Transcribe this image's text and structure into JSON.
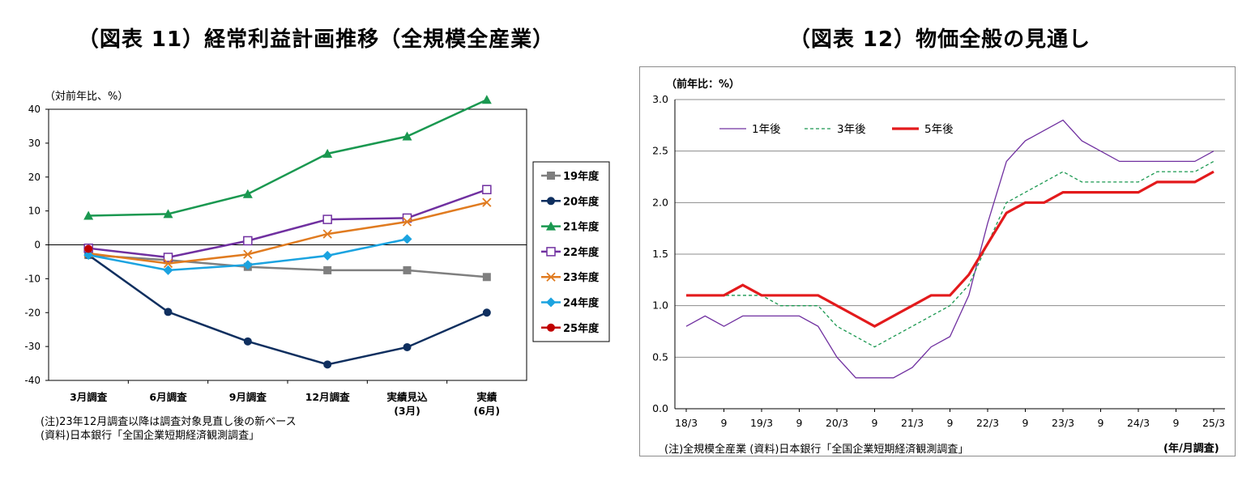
{
  "left_title": "（図表 11）経常利益計画推移（全規模全産業）",
  "right_title": "（図表 12）物価全般の見通し",
  "left_notes": {
    "note1": "(注)23年12月調査以降は調査対象見直し後の新ベース",
    "note2": "(資料)日本銀行「全国企業短期経済観測調査」"
  },
  "right_notes": {
    "note": "(注)全規模全産業 (資料)日本銀行「全国企業短期経済観測調査」",
    "xunit": "(年/月調査)"
  },
  "chart_data": [
    {
      "type": "line",
      "title": "（図表 11）経常利益計画推移（全規模全産業）",
      "ylabel": "（対前年比、%）",
      "ylim": [
        -40,
        40
      ],
      "yticks": [
        40,
        30,
        20,
        10,
        0,
        -10,
        -20,
        -30,
        -40
      ],
      "categories": [
        [
          "3月調査"
        ],
        [
          "6月調査"
        ],
        [
          "9月調査"
        ],
        [
          "12月調査"
        ],
        [
          "実績見込",
          "(3月)"
        ],
        [
          "実績",
          "(6月)"
        ]
      ],
      "legend_position": "right",
      "series": [
        {
          "name": "19年度",
          "color": "#7f7f7f",
          "marker": "square",
          "values": [
            -3,
            -4.5,
            -6.5,
            -7.5,
            -7.5,
            -9.5
          ]
        },
        {
          "name": "20年度",
          "color": "#0f2f5f",
          "marker": "circle",
          "values": [
            -3,
            -19.8,
            -28.5,
            -35.3,
            -30.2,
            -20
          ]
        },
        {
          "name": "21年度",
          "color": "#1a9850",
          "marker": "triangle",
          "values": [
            8.6,
            9.1,
            15,
            26.9,
            32,
            42.8
          ]
        },
        {
          "name": "22年度",
          "color": "#7030a0",
          "marker": "square-open",
          "values": [
            -1,
            -3.7,
            1.2,
            7.5,
            7.9,
            16.3
          ]
        },
        {
          "name": "23年度",
          "color": "#e07b20",
          "marker": "x",
          "values": [
            -2.5,
            -5.5,
            -2.8,
            3.2,
            6.8,
            12.5
          ]
        },
        {
          "name": "24年度",
          "color": "#1ba3e0",
          "marker": "diamond",
          "values": [
            -3,
            -7.5,
            -5.9,
            -3.2,
            1.7,
            null
          ]
        },
        {
          "name": "25年度",
          "color": "#c00000",
          "marker": "circle",
          "values": [
            -1.2,
            null,
            null,
            null,
            null,
            null
          ]
        }
      ]
    },
    {
      "type": "line",
      "title": "（図表 12）物価全般の見通し",
      "ylabel": "（前年比：%）",
      "ylim": [
        0,
        3
      ],
      "yticks": [
        "3.0",
        "2.5",
        "2.0",
        "1.5",
        "1.0",
        "0.5",
        "0.0"
      ],
      "xtick_labels": [
        "18/3",
        "9",
        "19/3",
        "9",
        "20/3",
        "9",
        "21/3",
        "9",
        "22/3",
        "9",
        "23/3",
        "9",
        "24/3",
        "9",
        "25/3"
      ],
      "legend_position": "top-left",
      "series": [
        {
          "name": "1年後",
          "color": "#7030a0",
          "style": "solid-thin",
          "values": [
            0.8,
            0.9,
            0.8,
            0.9,
            0.9,
            0.9,
            0.9,
            0.8,
            0.5,
            0.3,
            0.3,
            0.3,
            0.4,
            0.6,
            0.7,
            1.1,
            1.8,
            2.4,
            2.6,
            2.7,
            2.8,
            2.6,
            2.5,
            2.4,
            2.4,
            2.4,
            2.4,
            2.4,
            2.5
          ]
        },
        {
          "name": "3年後",
          "color": "#1a9850",
          "style": "dashed",
          "values": [
            1.1,
            1.1,
            1.1,
            1.1,
            1.1,
            1.0,
            1.0,
            1.0,
            0.8,
            0.7,
            0.6,
            0.7,
            0.8,
            0.9,
            1.0,
            1.2,
            1.6,
            2.0,
            2.1,
            2.2,
            2.3,
            2.2,
            2.2,
            2.2,
            2.2,
            2.3,
            2.3,
            2.3,
            2.4
          ]
        },
        {
          "name": "5年後",
          "color": "#e31a1c",
          "style": "solid-thick",
          "values": [
            1.1,
            1.1,
            1.1,
            1.2,
            1.1,
            1.1,
            1.1,
            1.1,
            1.0,
            0.9,
            0.8,
            0.9,
            1.0,
            1.1,
            1.1,
            1.3,
            1.6,
            1.9,
            2.0,
            2.0,
            2.1,
            2.1,
            2.1,
            2.1,
            2.1,
            2.2,
            2.2,
            2.2,
            2.3
          ]
        }
      ]
    }
  ]
}
